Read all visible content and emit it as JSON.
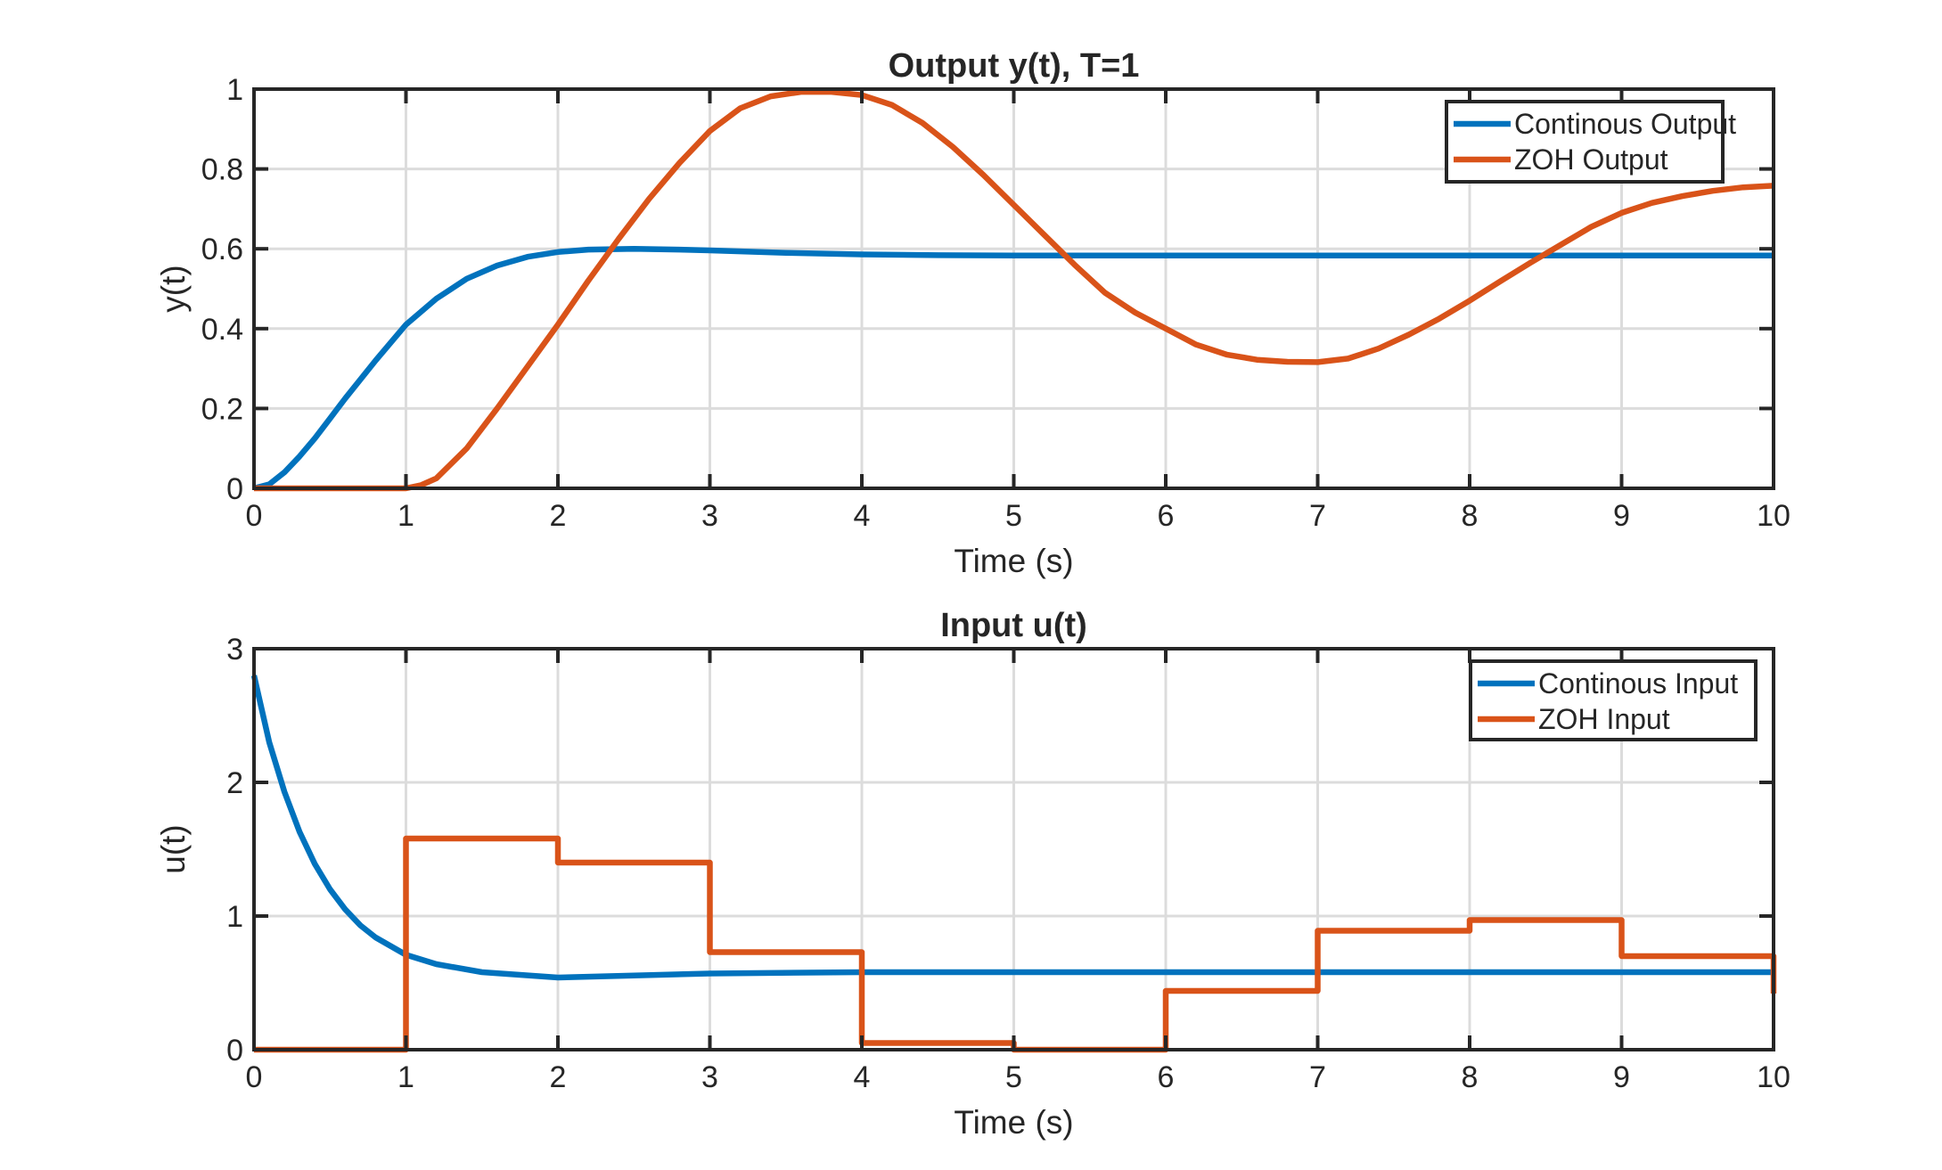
{
  "colors": {
    "continuous": "#0072BD",
    "zoh": "#D95319",
    "axis": "#262626",
    "grid": "#dcdcdc"
  },
  "chart_data": [
    {
      "type": "line",
      "title": "Output y(t), T=1",
      "xlabel": "Time (s)",
      "ylabel": "y(t)",
      "xlim": [
        0,
        10
      ],
      "ylim": [
        0,
        1
      ],
      "xticks": [
        "0",
        "1",
        "2",
        "3",
        "4",
        "5",
        "6",
        "7",
        "8",
        "9",
        "10"
      ],
      "yticks": [
        "0",
        "0.2",
        "0.4",
        "0.6",
        "0.8",
        "1"
      ],
      "grid": true,
      "legend_position": "top-right",
      "series": [
        {
          "name": "Continous Output",
          "color": "#0072BD",
          "x": [
            0,
            0.1,
            0.2,
            0.3,
            0.4,
            0.5,
            0.6,
            0.8,
            1.0,
            1.2,
            1.4,
            1.6,
            1.8,
            2.0,
            2.2,
            2.5,
            2.8,
            3.0,
            3.5,
            4.0,
            4.5,
            5.0,
            6.0,
            7.0,
            8.0,
            9.0,
            10.0
          ],
          "y": [
            0,
            0.01,
            0.04,
            0.08,
            0.125,
            0.175,
            0.225,
            0.32,
            0.41,
            0.475,
            0.525,
            0.558,
            0.58,
            0.592,
            0.598,
            0.6,
            0.598,
            0.596,
            0.59,
            0.586,
            0.584,
            0.583,
            0.583,
            0.583,
            0.583,
            0.583,
            0.583
          ]
        },
        {
          "name": "ZOH Output",
          "color": "#D95319",
          "x": [
            0,
            1.0,
            1.1,
            1.2,
            1.4,
            1.6,
            1.8,
            2.0,
            2.2,
            2.4,
            2.6,
            2.8,
            3.0,
            3.2,
            3.4,
            3.6,
            3.8,
            4.0,
            4.2,
            4.4,
            4.6,
            4.8,
            5.0,
            5.2,
            5.4,
            5.6,
            5.8,
            6.0,
            6.2,
            6.4,
            6.6,
            6.8,
            7.0,
            7.2,
            7.4,
            7.6,
            7.8,
            8.0,
            8.2,
            8.4,
            8.6,
            8.8,
            9.0,
            9.2,
            9.4,
            9.6,
            9.8,
            10.0
          ],
          "y": [
            0,
            0,
            0.008,
            0.025,
            0.1,
            0.2,
            0.305,
            0.41,
            0.52,
            0.625,
            0.725,
            0.815,
            0.895,
            0.952,
            0.982,
            0.993,
            0.993,
            0.985,
            0.96,
            0.915,
            0.855,
            0.785,
            0.71,
            0.635,
            0.56,
            0.49,
            0.44,
            0.4,
            0.36,
            0.335,
            0.322,
            0.317,
            0.316,
            0.325,
            0.35,
            0.385,
            0.425,
            0.47,
            0.518,
            0.565,
            0.61,
            0.655,
            0.69,
            0.715,
            0.732,
            0.745,
            0.754,
            0.758
          ]
        }
      ]
    },
    {
      "type": "line",
      "title": "Input u(t)",
      "xlabel": "Time (s)",
      "ylabel": "u(t)",
      "xlim": [
        0,
        10
      ],
      "ylim": [
        0,
        3
      ],
      "xticks": [
        "0",
        "1",
        "2",
        "3",
        "4",
        "5",
        "6",
        "7",
        "8",
        "9",
        "10"
      ],
      "yticks": [
        "0",
        "1",
        "2",
        "3"
      ],
      "grid": true,
      "legend_position": "top-right",
      "series": [
        {
          "name": "Continous Input",
          "color": "#0072BD",
          "x": [
            0,
            0.1,
            0.2,
            0.3,
            0.4,
            0.5,
            0.6,
            0.7,
            0.8,
            1.0,
            1.2,
            1.5,
            2.0,
            2.5,
            3.0,
            4.0,
            5.0,
            6.0,
            7.0,
            8.0,
            9.0,
            10.0
          ],
          "y": [
            2.8,
            2.3,
            1.93,
            1.63,
            1.39,
            1.2,
            1.05,
            0.93,
            0.84,
            0.71,
            0.64,
            0.58,
            0.54,
            0.555,
            0.57,
            0.58,
            0.58,
            0.58,
            0.58,
            0.58,
            0.58,
            0.58
          ]
        },
        {
          "name": "ZOH Input",
          "color": "#D95319",
          "x": [
            0,
            1,
            1,
            2,
            2,
            3,
            3,
            4,
            4,
            5,
            5,
            6,
            6,
            7,
            7,
            8,
            8,
            9,
            9,
            10,
            10
          ],
          "y": [
            0,
            0,
            1.58,
            1.58,
            1.4,
            1.4,
            0.73,
            0.73,
            0.05,
            0.05,
            0,
            0,
            0.44,
            0.44,
            0.89,
            0.89,
            0.97,
            0.97,
            0.7,
            0.7,
            0.42
          ]
        }
      ]
    }
  ]
}
